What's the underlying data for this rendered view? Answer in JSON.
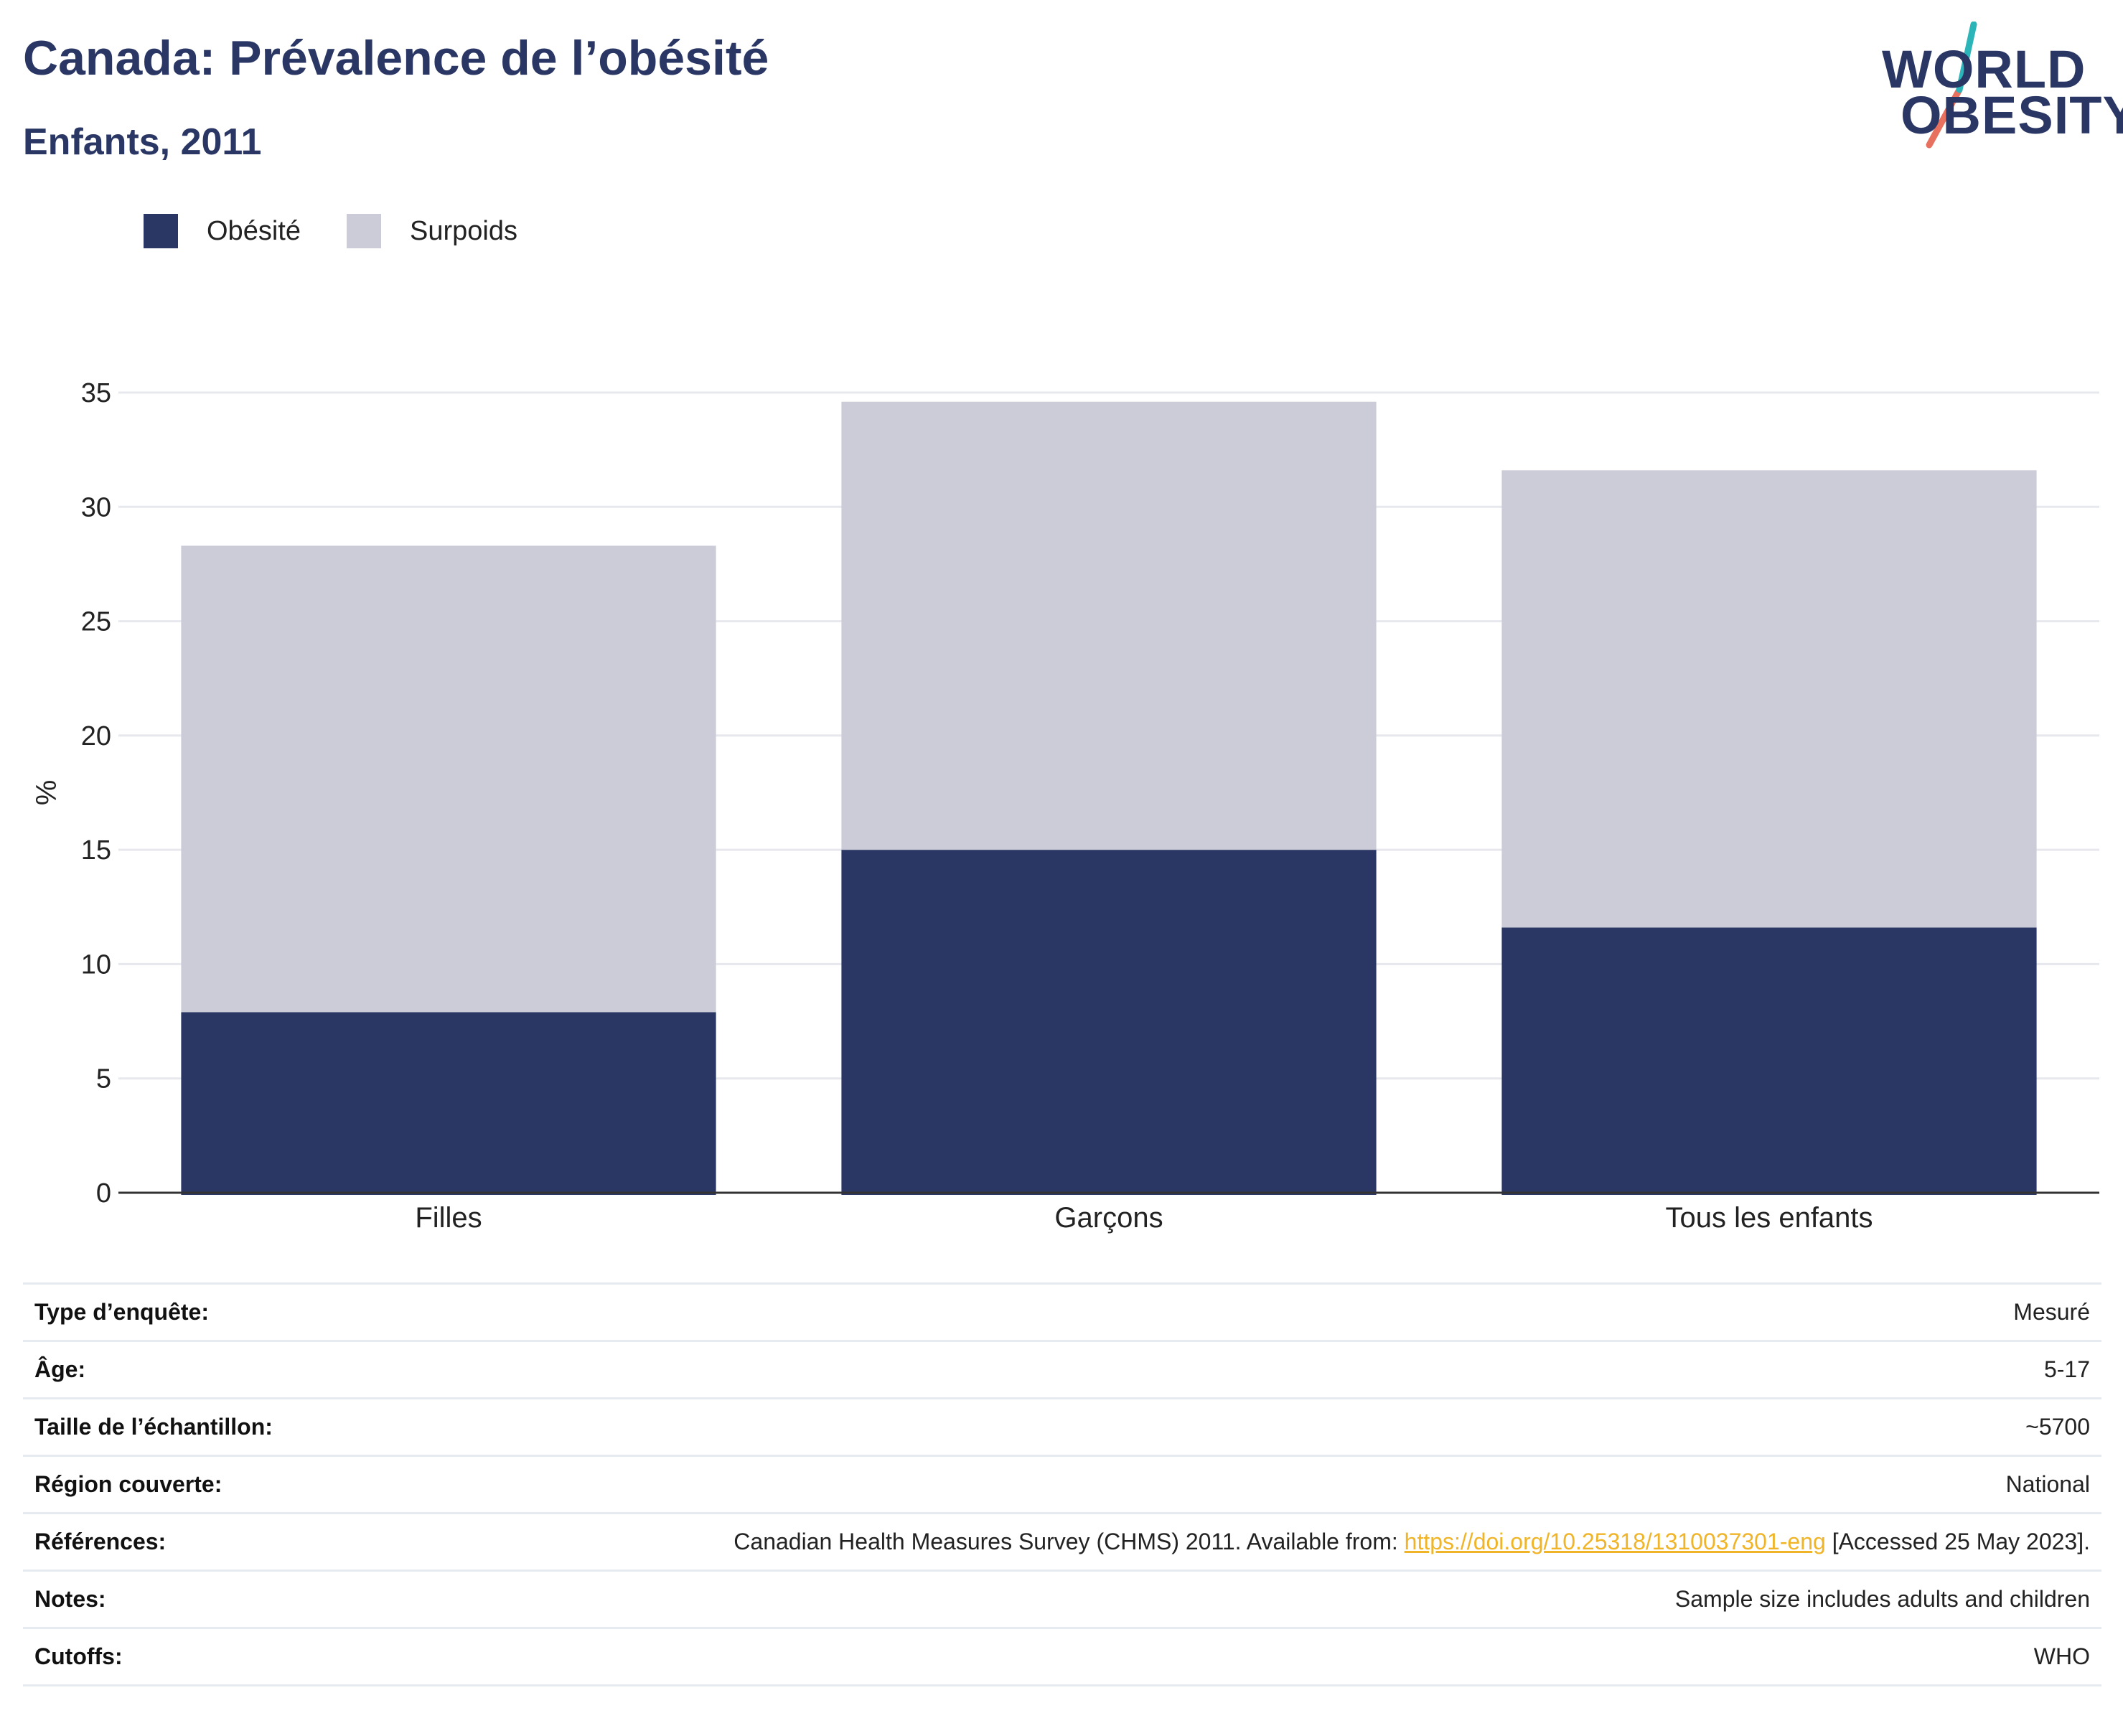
{
  "header": {
    "title": "Canada: Prévalence de l’obésité",
    "subtitle": "Enfants, 2011"
  },
  "logo": {
    "line1": "WORLD",
    "line2": "OBESITY",
    "accent1": "#2bb5b8",
    "accent2": "#e8705f"
  },
  "legend": [
    {
      "label": "Obésité",
      "color": "#2a3764"
    },
    {
      "label": "Surpoids",
      "color": "#cbccd8"
    }
  ],
  "chart_data": {
    "type": "bar",
    "stacked": true,
    "categories": [
      "Filles",
      "Garçons",
      "Tous les enfants"
    ],
    "series": [
      {
        "name": "Obésité",
        "values": [
          7.9,
          15.0,
          11.6
        ],
        "color": "#2a3764"
      },
      {
        "name": "Surpoids",
        "values": [
          20.4,
          19.6,
          20.0
        ],
        "color": "#cbccd8"
      }
    ],
    "title": "",
    "xlabel": "",
    "ylabel": "%",
    "ylim": [
      0,
      35
    ],
    "yticks": [
      0,
      5,
      10,
      15,
      20,
      25,
      30,
      35
    ],
    "grid": true,
    "legend_position": "top-left"
  },
  "info": [
    {
      "key": "Type d’enquête:",
      "value": "Mesuré"
    },
    {
      "key": "Âge:",
      "value": "5-17"
    },
    {
      "key": "Taille de l’échantillon:",
      "value": "~5700"
    },
    {
      "key": "Région couverte:",
      "value": "National"
    },
    {
      "key": "Références:",
      "value_pre": "Canadian Health Measures Survey (CHMS) 2011. Available from: ",
      "link": "https://doi.org/10.25318/1310037301-eng",
      "value_post": " [Accessed 25 May 2023]."
    },
    {
      "key": "Notes:",
      "value": "Sample size includes adults and children"
    },
    {
      "key": "Cutoffs:",
      "value": "WHO"
    }
  ]
}
